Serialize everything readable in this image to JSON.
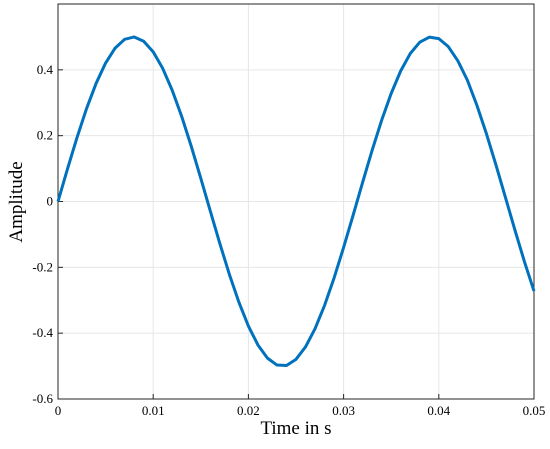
{
  "chart_data": {
    "type": "line",
    "x_label": "Time in s",
    "y_label": "Amplitude",
    "x": [
      0,
      0.001,
      0.002,
      0.003,
      0.004,
      0.005,
      0.006,
      0.007,
      0.008,
      0.009,
      0.01,
      0.011,
      0.012,
      0.013,
      0.014,
      0.015,
      0.016,
      0.017,
      0.018,
      0.019,
      0.02,
      0.021,
      0.022,
      0.023,
      0.024,
      0.025,
      0.026,
      0.027,
      0.028,
      0.029,
      0.03,
      0.031,
      0.032,
      0.033,
      0.034,
      0.035,
      0.036,
      0.037,
      0.038,
      0.039,
      0.04,
      0.041,
      0.042,
      0.043,
      0.044,
      0.045,
      0.046,
      0.047,
      0.048,
      0.049,
      0.05
    ],
    "series": [
      {
        "color": "#0072bd",
        "values": [
          0,
          0.0993,
          0.1947,
          0.2823,
          0.3587,
          0.4207,
          0.466,
          0.4927,
          0.4998,
          0.4869,
          0.4546,
          0.4043,
          0.3377,
          0.2578,
          0.1675,
          0.0706,
          -0.0292,
          -0.1278,
          -0.2213,
          -0.3059,
          -0.3784,
          -0.4358,
          -0.4758,
          -0.4968,
          -0.4981,
          -0.4795,
          -0.4417,
          -0.3864,
          -0.3156,
          -0.2323,
          -0.1397,
          -0.0415,
          0.0583,
          0.1558,
          0.2471,
          0.3285,
          0.3968,
          0.4494,
          0.484,
          0.4993,
          0.4947,
          0.4704,
          0.4273,
          0.3687,
          0.2925,
          0.2061,
          0.1114,
          0.0124,
          -0.0872,
          -0.1832,
          -0.272
        ]
      }
    ],
    "xlim": [
      0,
      0.05
    ],
    "ylim": [
      -0.6,
      0.6
    ],
    "xticks": [
      0,
      0.01,
      0.02,
      0.03,
      0.04,
      0.05
    ],
    "yticks": [
      -0.6,
      -0.4,
      -0.2,
      0,
      0.2,
      0.4
    ],
    "grid": true
  }
}
